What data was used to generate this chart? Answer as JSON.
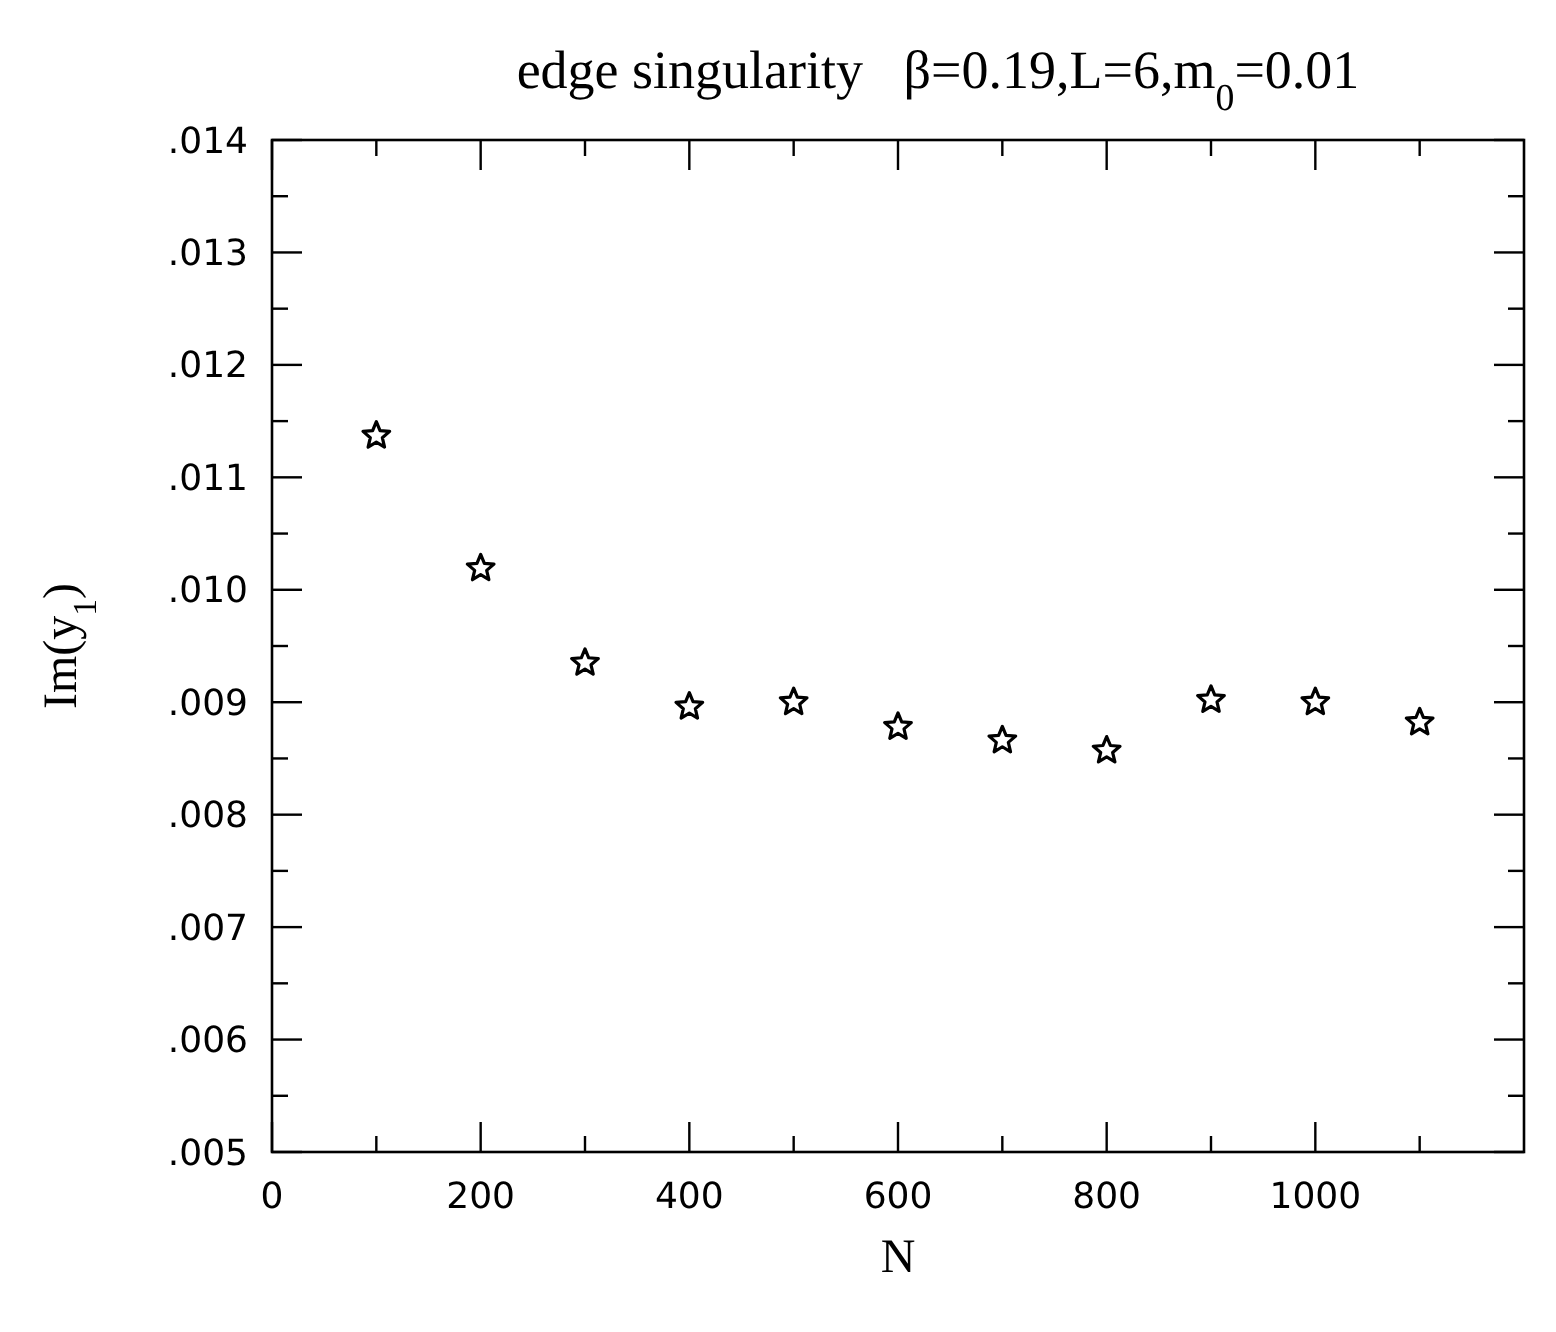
{
  "chart_data": {
    "type": "scatter",
    "title": "edge singularity   β=0.19,L=6,m$_{0}$=0.01",
    "xlabel": "N",
    "ylabel": "Im(y$_{1}$)",
    "x": [
      100,
      200,
      300,
      400,
      500,
      600,
      700,
      800,
      900,
      1000,
      1100
    ],
    "values": [
      0.01137,
      0.01019,
      0.00935,
      0.00896,
      0.009,
      0.00878,
      0.00866,
      0.00857,
      0.00902,
      0.009,
      0.00882
    ],
    "color": "#000000",
    "marker": "star",
    "grid": false,
    "xlim": [
      0,
      1200
    ],
    "xticks": [
      0,
      {
        "value": 100,
        "label": null
      },
      200,
      {
        "value": 300,
        "label": null
      },
      400,
      {
        "value": 500,
        "label": null
      },
      600,
      {
        "value": 700,
        "label": null
      },
      800,
      {
        "value": 900,
        "label": null
      },
      1000,
      {
        "value": 1100,
        "label": null
      }
    ],
    "ylim": [
      0.005,
      0.014
    ],
    "yticks": [
      {
        "value": 0.005,
        "label": ".005"
      },
      {
        "value": 0.0055,
        "label": null
      },
      {
        "value": 0.006,
        "label": ".006"
      },
      {
        "value": 0.0065,
        "label": null
      },
      {
        "value": 0.007,
        "label": ".007"
      },
      {
        "value": 0.0075,
        "label": null
      },
      {
        "value": 0.008,
        "label": ".008"
      },
      {
        "value": 0.0085,
        "label": null
      },
      {
        "value": 0.009,
        "label": ".009"
      },
      {
        "value": 0.0095,
        "label": null
      },
      {
        "value": 0.01,
        "label": ".010"
      },
      {
        "value": 0.0105,
        "label": null
      },
      {
        "value": 0.011,
        "label": ".011"
      },
      {
        "value": 0.0115,
        "label": null
      },
      {
        "value": 0.012,
        "label": ".012"
      },
      {
        "value": 0.0125,
        "label": null
      },
      {
        "value": 0.013,
        "label": ".013"
      },
      {
        "value": 0.0135,
        "label": null
      },
      {
        "value": 0.014,
        "label": ".014"
      }
    ]
  }
}
